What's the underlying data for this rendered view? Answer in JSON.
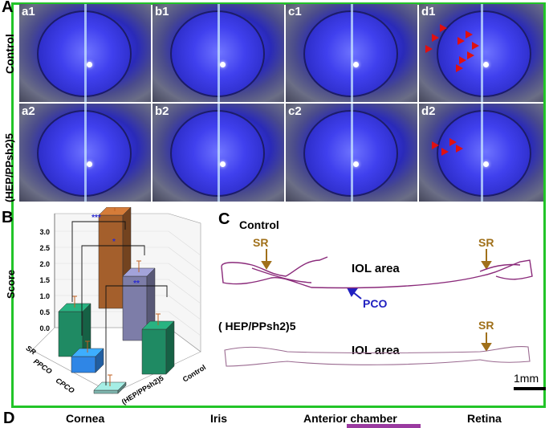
{
  "panels": {
    "A": "A",
    "B": "B",
    "C": "C",
    "D": "D"
  },
  "row_labels": {
    "control": "Control",
    "treated": "(HEP/PPsh2)5"
  },
  "eye_tags": [
    "a1",
    "b1",
    "c1",
    "d1",
    "a2",
    "b2",
    "c2",
    "d2"
  ],
  "chart_data": {
    "type": "bar",
    "ylabel": "Score",
    "yticks": [
      "0.0",
      "0.5",
      "1.0",
      "1.5",
      "2.0",
      "2.5",
      "3.0"
    ],
    "ylim": [
      0,
      3.2
    ],
    "row_labels": [
      "SR",
      "PPCO",
      "CPCO"
    ],
    "group_labels": [
      "(HEP/PPsh2)5",
      "Control"
    ],
    "bars": [
      {
        "group": "Control",
        "row": "SR",
        "value": 1.4,
        "color": "#1f8a63"
      },
      {
        "group": "Control",
        "row": "PPCO",
        "value": 2.0,
        "color": "#7d7da8"
      },
      {
        "group": "Control",
        "row": "CPCO",
        "value": 2.9,
        "color": "#a45f2c"
      },
      {
        "group": "(HEP/PPsh2)5",
        "row": "SR",
        "value": 1.4,
        "color": "#1f8a63"
      },
      {
        "group": "(HEP/PPsh2)5",
        "row": "PPCO",
        "value": 0.5,
        "color": "#2f86e6"
      },
      {
        "group": "(HEP/PPsh2)5",
        "row": "CPCO",
        "value": 0.1,
        "color": "#7fb7b0"
      }
    ],
    "significance": [
      "***",
      "*",
      "**"
    ]
  },
  "panel_c": {
    "control": "Control",
    "treated": "( HEP/PPsh2)5",
    "sr": "SR",
    "iol": "IOL area",
    "pco": "PCO",
    "scale": "1mm"
  },
  "panel_d": {
    "labels": [
      "Cornea",
      "Iris",
      "Anterior chamber",
      "Retina"
    ]
  }
}
